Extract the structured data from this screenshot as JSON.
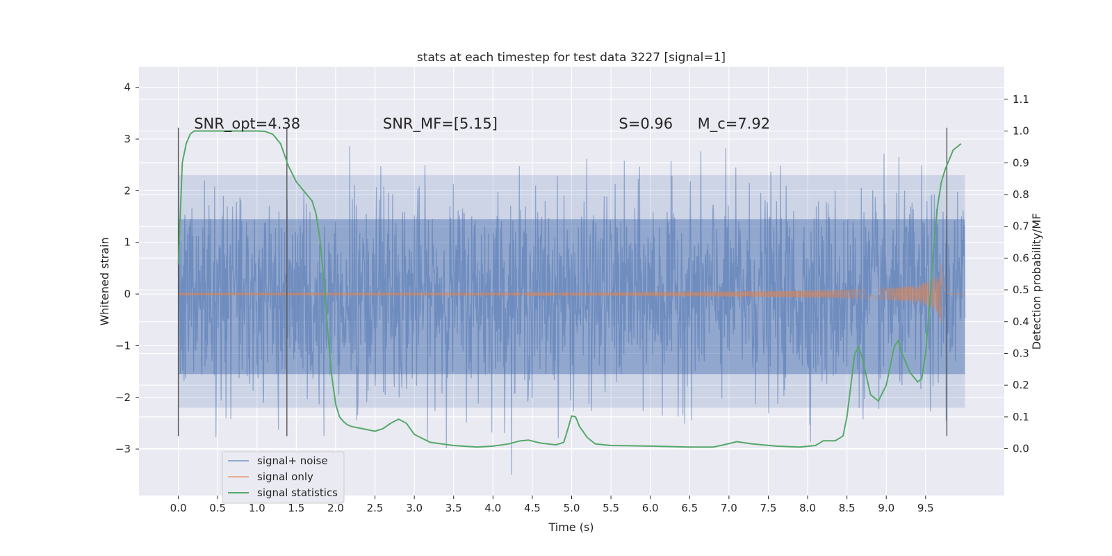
{
  "chart_data": {
    "type": "line",
    "title": "stats at each timestep for test data 3227 [signal=1]",
    "xlabel": "Time (s)",
    "ylabel": "Whitened strain",
    "y2label": "Detection probability/MF",
    "xlim": [
      -0.5,
      10.5
    ],
    "ylim": [
      -3.9,
      4.4
    ],
    "y2lim": [
      -0.1475,
      1.2025
    ],
    "xticks": [
      0.0,
      0.5,
      1.0,
      1.5,
      2.0,
      2.5,
      3.0,
      3.5,
      4.0,
      4.5,
      5.0,
      5.5,
      6.0,
      6.5,
      7.0,
      7.5,
      8.0,
      8.5,
      9.0,
      9.5
    ],
    "xtick_labels": [
      "0.0",
      "0.5",
      "1.0",
      "1.5",
      "2.0",
      "2.5",
      "3.0",
      "3.5",
      "4.0",
      "4.5",
      "5.0",
      "5.5",
      "6.0",
      "6.5",
      "7.0",
      "7.5",
      "8.0",
      "8.5",
      "9.0",
      "9.5"
    ],
    "yticks": [
      -3,
      -2,
      -1,
      0,
      1,
      2,
      3,
      4
    ],
    "ytick_labels": [
      "−3",
      "−2",
      "−1",
      "0",
      "1",
      "2",
      "3",
      "4"
    ],
    "y2ticks": [
      0.0,
      0.1,
      0.2,
      0.3,
      0.4,
      0.5,
      0.6,
      0.7,
      0.8,
      0.9,
      1.0,
      1.1
    ],
    "y2tick_labels": [
      "0.0",
      "0.1",
      "0.2",
      "0.3",
      "0.4",
      "0.5",
      "0.6",
      "0.7",
      "0.8",
      "0.9",
      "1.0",
      "1.1"
    ],
    "grid": true,
    "legend_position": "lower-left",
    "annotations": [
      {
        "text": "SNR_opt=4.38",
        "x": 0.2,
        "y": 3.2
      },
      {
        "text": "SNR_MF=[5.15]",
        "x": 2.6,
        "y": 3.2
      },
      {
        "text": "S=0.96",
        "x": 5.6,
        "y": 3.2
      },
      {
        "text": "M_c=7.92",
        "x": 6.6,
        "y": 3.2
      }
    ],
    "vertical_markers": [
      0.0,
      1.38,
      9.77
    ],
    "marker_range": [
      -2.75,
      3.22
    ],
    "series": [
      {
        "name": "signal+ noise",
        "color": "#4c72b0",
        "axis": "left",
        "style": "noise-band",
        "t_start": 0.0,
        "t_end": 10.0,
        "band_low": -2.2,
        "band_high": 2.3,
        "core_low": -1.55,
        "core_high": 1.45
      },
      {
        "name": "signal only",
        "color": "#dd8452",
        "axis": "left",
        "style": "chirp",
        "t_start": 0.0,
        "t_end": 10.0,
        "peak_time": 9.7,
        "peak_amplitude": 0.6
      },
      {
        "name": "signal statistics",
        "color": "#55a868",
        "axis": "right",
        "style": "line",
        "x": [
          0.0,
          0.05,
          0.1,
          0.15,
          0.2,
          0.3,
          0.5,
          0.8,
          1.0,
          1.1,
          1.2,
          1.3,
          1.4,
          1.5,
          1.6,
          1.7,
          1.75,
          1.8,
          1.85,
          1.9,
          1.95,
          2.0,
          2.05,
          2.1,
          2.15,
          2.2,
          2.3,
          2.5,
          2.6,
          2.7,
          2.8,
          2.9,
          3.0,
          3.2,
          3.5,
          3.8,
          4.0,
          4.2,
          4.35,
          4.45,
          4.6,
          4.8,
          4.9,
          4.95,
          5.0,
          5.05,
          5.1,
          5.2,
          5.3,
          5.5,
          6.0,
          6.5,
          6.8,
          6.95,
          7.1,
          7.3,
          7.6,
          7.9,
          8.1,
          8.2,
          8.35,
          8.45,
          8.5,
          8.55,
          8.6,
          8.65,
          8.7,
          8.8,
          8.9,
          9.0,
          9.05,
          9.1,
          9.15,
          9.2,
          9.3,
          9.4,
          9.45,
          9.5,
          9.55,
          9.6,
          9.65,
          9.7,
          9.75,
          9.8,
          9.85,
          9.9,
          9.95
        ],
        "y": [
          0.58,
          0.9,
          0.96,
          0.99,
          1.0,
          1.0,
          1.0,
          1.0,
          1.0,
          0.999,
          0.99,
          0.96,
          0.89,
          0.84,
          0.81,
          0.78,
          0.74,
          0.66,
          0.53,
          0.37,
          0.23,
          0.14,
          0.1,
          0.085,
          0.075,
          0.07,
          0.065,
          0.055,
          0.063,
          0.08,
          0.093,
          0.08,
          0.045,
          0.02,
          0.01,
          0.005,
          0.008,
          0.015,
          0.025,
          0.027,
          0.018,
          0.012,
          0.02,
          0.06,
          0.103,
          0.1,
          0.07,
          0.035,
          0.015,
          0.01,
          0.008,
          0.005,
          0.005,
          0.013,
          0.022,
          0.015,
          0.008,
          0.005,
          0.01,
          0.025,
          0.025,
          0.04,
          0.1,
          0.2,
          0.3,
          0.32,
          0.28,
          0.17,
          0.15,
          0.2,
          0.26,
          0.32,
          0.34,
          0.3,
          0.24,
          0.21,
          0.22,
          0.3,
          0.45,
          0.62,
          0.76,
          0.84,
          0.88,
          0.91,
          0.94,
          0.95,
          0.96
        ]
      }
    ]
  }
}
